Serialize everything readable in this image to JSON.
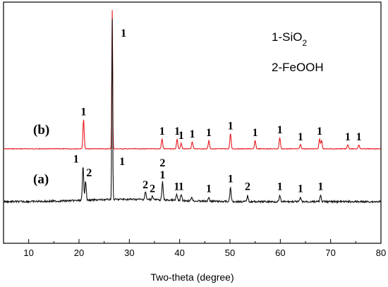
{
  "chart_data": {
    "type": "line",
    "xlabel": "Two-theta (degree)",
    "ylabel": "",
    "xlim": [
      5,
      80
    ],
    "x_ticks": [
      10,
      20,
      30,
      40,
      50,
      60,
      70,
      80
    ],
    "y_ticks_shown": false,
    "grid": false,
    "legend": {
      "placement": "top-right",
      "entries": [
        {
          "key": "1",
          "text": "1-SiO",
          "sub": "2"
        },
        {
          "key": "2",
          "text": "2-FeOOH",
          "sub": ""
        }
      ]
    },
    "series": [
      {
        "name": "(b)",
        "color": "#e8191f",
        "baseline": 0.0,
        "peaks": [
          {
            "x": 20.9,
            "height": 0.21,
            "label": "1"
          },
          {
            "x": 26.6,
            "height": 1.0,
            "label": "1"
          },
          {
            "x": 36.5,
            "height": 0.07,
            "label": "1"
          },
          {
            "x": 39.5,
            "height": 0.07,
            "label": "1"
          },
          {
            "x": 40.3,
            "height": 0.04,
            "label": "1"
          },
          {
            "x": 42.5,
            "height": 0.05,
            "label": "1"
          },
          {
            "x": 45.8,
            "height": 0.06,
            "label": "1"
          },
          {
            "x": 50.1,
            "height": 0.11,
            "label": "1"
          },
          {
            "x": 55.0,
            "height": 0.06,
            "label": "1"
          },
          {
            "x": 59.9,
            "height": 0.08,
            "label": "1"
          },
          {
            "x": 64.0,
            "height": 0.03,
            "label": "1"
          },
          {
            "x": 67.8,
            "height": 0.07,
            "label": "1"
          },
          {
            "x": 68.2,
            "height": 0.06,
            "label": ""
          },
          {
            "x": 73.4,
            "height": 0.03,
            "label": "1"
          },
          {
            "x": 75.6,
            "height": 0.03,
            "label": "1"
          }
        ]
      },
      {
        "name": "(a)",
        "color": "#111111",
        "baseline": 0.0,
        "peaks": [
          {
            "x": 20.8,
            "height": 0.17,
            "label": "1"
          },
          {
            "x": 21.3,
            "height": 0.1,
            "label": "2"
          },
          {
            "x": 26.6,
            "height": 0.92,
            "label": "1"
          },
          {
            "x": 33.2,
            "height": 0.04,
            "label": "2"
          },
          {
            "x": 34.6,
            "height": 0.02,
            "label": "2"
          },
          {
            "x": 36.6,
            "height": 0.09,
            "label": "1"
          },
          {
            "x": 39.4,
            "height": 0.03,
            "label": "1"
          },
          {
            "x": 40.3,
            "height": 0.03,
            "label": "1"
          },
          {
            "x": 42.4,
            "height": 0.02,
            "label": ""
          },
          {
            "x": 45.8,
            "height": 0.02,
            "label": "1"
          },
          {
            "x": 50.1,
            "height": 0.07,
            "label": "1"
          },
          {
            "x": 53.5,
            "height": 0.03,
            "label": "2"
          },
          {
            "x": 59.9,
            "height": 0.03,
            "label": "1"
          },
          {
            "x": 64.0,
            "height": 0.02,
            "label": "1"
          },
          {
            "x": 68.0,
            "height": 0.03,
            "label": "1"
          }
        ]
      }
    ],
    "extra_labels": [
      {
        "x": 36.6,
        "series": "(a)",
        "text": "2"
      },
      {
        "x": 27.9,
        "series": "(a)",
        "text": "1"
      }
    ]
  }
}
